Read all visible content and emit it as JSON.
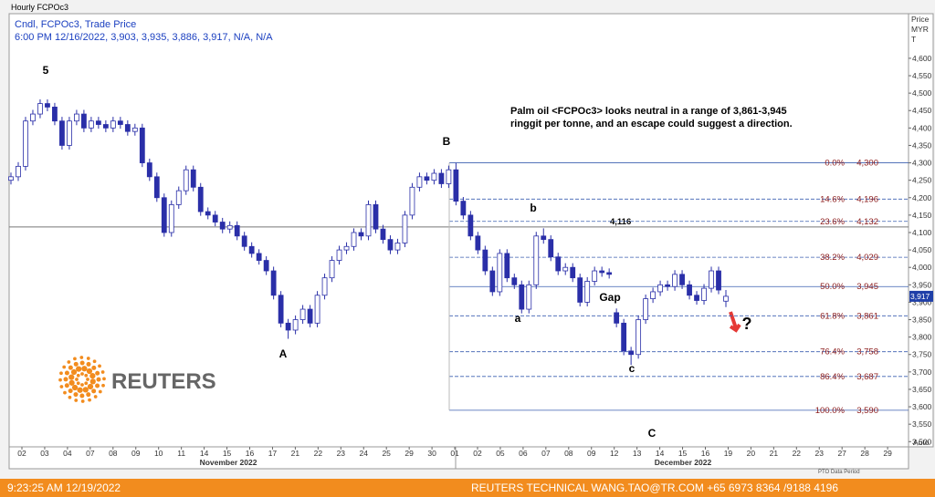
{
  "chart_data": {
    "type": "candlestick",
    "title": "Hourly FCPOc3",
    "subtitle": "Cndl, FCPOc3, Trade Price",
    "info_line": "6:00 PM 12/16/2022, 3,903, 3,935, 3,886, 3,917, N/A, N/A",
    "axis_label": [
      "Price",
      "MYR",
      "T"
    ],
    "auto_label": "Auto",
    "period_label": "PTO Data Period",
    "categories": [
      "02",
      "03",
      "04",
      "07",
      "08",
      "09",
      "10",
      "11",
      "14",
      "15",
      "16",
      "17",
      "21",
      "22",
      "23",
      "24",
      "25",
      "29",
      "30",
      "01",
      "02",
      "05",
      "06",
      "07",
      "08",
      "09",
      "12",
      "13",
      "14",
      "15",
      "16",
      "19",
      "20",
      "21",
      "22",
      "23",
      "27",
      "28",
      "29"
    ],
    "months": [
      "November 2022",
      "December 2022"
    ],
    "open": [
      4250,
      4260,
      4290,
      4420,
      4440,
      4470,
      4460,
      4420,
      4350,
      4420,
      4440,
      4400,
      4420,
      4410,
      4400,
      4420,
      4410,
      4390,
      4400,
      4300,
      4260,
      4200,
      4100,
      4180,
      4220,
      4280,
      4230,
      4160,
      4150,
      4130,
      4110,
      4120,
      4090,
      4060,
      4040,
      4020,
      3990,
      3920,
      3840,
      3820,
      3850,
      3880,
      3840,
      3920,
      3970,
      4020,
      4050,
      4060,
      4100,
      4090,
      4180,
      4110,
      4080,
      4050,
      4070,
      4150,
      4230,
      4260,
      4250,
      4270,
      4240,
      4280,
      4190,
      4150,
      4090,
      4050,
      3990,
      3930,
      4040,
      3970,
      3950,
      3880,
      3950,
      4090,
      4080,
      4030,
      3990,
      4000,
      3970,
      3900,
      3960,
      3990,
      3985,
      3870,
      3840,
      3760,
      3750,
      3850,
      3910,
      3930,
      3950,
      3945,
      3980,
      3950,
      3920,
      3905,
      3940,
      3990,
      3903
    ],
    "high": [
      4272,
      4302,
      4432,
      4452,
      4482,
      4482,
      4472,
      4432,
      4432,
      4452,
      4452,
      4432,
      4432,
      4422,
      4432,
      4432,
      4422,
      4412,
      4412,
      4312,
      4272,
      4212,
      4192,
      4232,
      4292,
      4292,
      4242,
      4172,
      4162,
      4142,
      4132,
      4132,
      4102,
      4072,
      4052,
      4032,
      4002,
      3932,
      3852,
      3862,
      3892,
      3892,
      3932,
      3982,
      4032,
      4062,
      4072,
      4112,
      4112,
      4192,
      4192,
      4122,
      4092,
      4082,
      4162,
      4242,
      4272,
      4272,
      4282,
      4282,
      4292,
      4300,
      4202,
      4162,
      4102,
      4062,
      4002,
      4052,
      4052,
      3982,
      3962,
      3962,
      4102,
      4112,
      4092,
      4042,
      4012,
      4012,
      3982,
      3972,
      4002,
      4002,
      3997,
      3882,
      3852,
      3772,
      3862,
      3922,
      3942,
      3962,
      3962,
      3992,
      3992,
      3962,
      3932,
      3952,
      4002,
      4002,
      3935
    ],
    "low": [
      4238,
      4248,
      4278,
      4408,
      4428,
      4448,
      4408,
      4338,
      4338,
      4408,
      4388,
      4388,
      4398,
      4388,
      4388,
      4398,
      4378,
      4378,
      4288,
      4248,
      4188,
      4088,
      4088,
      4168,
      4208,
      4218,
      4148,
      4138,
      4118,
      4098,
      4098,
      4078,
      4048,
      4028,
      4008,
      3978,
      3908,
      3828,
      3795,
      3808,
      3838,
      3828,
      3828,
      3908,
      3958,
      4008,
      4038,
      4048,
      4078,
      4078,
      4098,
      4068,
      4038,
      4038,
      4058,
      4138,
      4218,
      4238,
      4238,
      4228,
      4228,
      4178,
      4138,
      4078,
      4038,
      3978,
      3918,
      3918,
      3958,
      3938,
      3868,
      3868,
      3938,
      4068,
      4018,
      3978,
      3978,
      3958,
      3888,
      3888,
      3948,
      3973,
      3968,
      3828,
      3748,
      3720,
      3738,
      3838,
      3898,
      3918,
      3933,
      3933,
      3938,
      3908,
      3893,
      3893,
      3928,
      3923,
      3886
    ],
    "close": [
      4260,
      4290,
      4420,
      4440,
      4470,
      4460,
      4420,
      4350,
      4420,
      4440,
      4400,
      4420,
      4410,
      4400,
      4420,
      4410,
      4390,
      4400,
      4300,
      4260,
      4200,
      4100,
      4180,
      4220,
      4280,
      4230,
      4160,
      4150,
      4130,
      4110,
      4120,
      4090,
      4060,
      4040,
      4020,
      3990,
      3920,
      3840,
      3820,
      3850,
      3880,
      3840,
      3920,
      3970,
      4020,
      4050,
      4060,
      4100,
      4090,
      4180,
      4110,
      4080,
      4050,
      4070,
      4150,
      4230,
      4260,
      4250,
      4270,
      4240,
      4280,
      4190,
      4150,
      4090,
      4050,
      3990,
      3930,
      4040,
      3970,
      3950,
      3880,
      3950,
      4090,
      4080,
      4030,
      3990,
      4000,
      3970,
      3900,
      3960,
      3990,
      3985,
      3980,
      3840,
      3760,
      3750,
      3850,
      3910,
      3930,
      3950,
      3945,
      3980,
      3950,
      3920,
      3905,
      3940,
      3990,
      3935,
      3917
    ],
    "color": "#2a2fa8",
    "ylim": [
      3485,
      4728
    ],
    "yticks": [
      {
        "value": 3500,
        "label": "3,500"
      },
      {
        "value": 3550,
        "label": "3,550"
      },
      {
        "value": 3600,
        "label": "3,600"
      },
      {
        "value": 3650,
        "label": "3,650"
      },
      {
        "value": 3700,
        "label": "3,700"
      },
      {
        "value": 3750,
        "label": "3,750"
      },
      {
        "value": 3800,
        "label": "3,800"
      },
      {
        "value": 3850,
        "label": "3,850"
      },
      {
        "value": 3900,
        "label": "3,900"
      },
      {
        "value": 3950,
        "label": "3,950"
      },
      {
        "value": 4000,
        "label": "4,000"
      },
      {
        "value": 4050,
        "label": "4,050"
      },
      {
        "value": 4100,
        "label": "4,100"
      },
      {
        "value": 4150,
        "label": "4,150"
      },
      {
        "value": 4200,
        "label": "4,200"
      },
      {
        "value": 4250,
        "label": "4,250"
      },
      {
        "value": 4300,
        "label": "4,300"
      },
      {
        "value": 4350,
        "label": "4,350"
      },
      {
        "value": 4400,
        "label": "4,400"
      },
      {
        "value": 4450,
        "label": "4,450"
      },
      {
        "value": 4500,
        "label": "4,500"
      },
      {
        "value": 4550,
        "label": "4,550"
      },
      {
        "value": 4600,
        "label": "4,600"
      }
    ],
    "last_price": {
      "value": 3917,
      "label": "3,917"
    },
    "reference_line": {
      "value": 4116,
      "label": "4,116"
    },
    "fibonacci": [
      {
        "label": "0.0%",
        "value": 4300,
        "value_label": "4,300"
      },
      {
        "label": "14.6%",
        "value": 4196,
        "value_label": "4,196"
      },
      {
        "label": "23.6%",
        "value": 4132,
        "value_label": "4,132"
      },
      {
        "label": "38.2%",
        "value": 4029,
        "value_label": "4,029"
      },
      {
        "label": "50.0%",
        "value": 3945,
        "value_label": "3,945"
      },
      {
        "label": "61.8%",
        "value": 3861,
        "value_label": "3,861"
      },
      {
        "label": "76.4%",
        "value": 3758,
        "value_label": "3,758"
      },
      {
        "label": "86.4%",
        "value": 3687,
        "value_label": "3,687"
      },
      {
        "label": "100.0%",
        "value": 3590,
        "value_label": "3,590"
      }
    ],
    "annotations": [
      "5",
      "A",
      "B",
      "b",
      "a",
      "c",
      "C",
      "Gap",
      "?"
    ],
    "note": [
      "Palm oil <FCPOc3> looks neutral in a range of 3,861-3,945",
      "ringgit per tonne, and an escape could suggest a direction."
    ],
    "logo": "REUTERS",
    "footer_left": "9:23:25 AM 12/19/2022",
    "footer_right": "REUTERS TECHNICAL  WANG.TAO@TR.COM  +65 6973 8364 /9188 4196"
  }
}
